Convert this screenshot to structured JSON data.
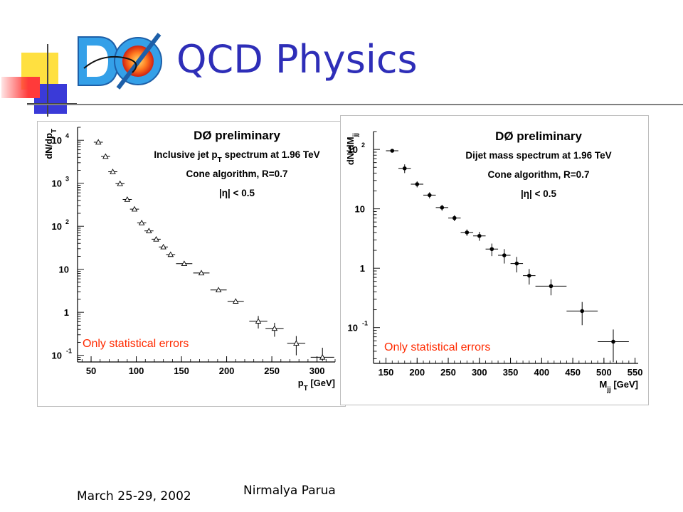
{
  "slide": {
    "title": "QCD Physics",
    "footer_date": "March 25-29, 2002",
    "footer_author": "Nirmalya Parua",
    "logo_label": "DØ"
  },
  "colors": {
    "title": "#2e2eb8",
    "note": "#ff2a00",
    "deco_yellow": "#ffe040",
    "deco_red": "#ff3a3a",
    "deco_blue": "#3a3ad8"
  },
  "chart_data": [
    {
      "type": "scatter",
      "title": "DØ preliminary",
      "subtitle_lines": [
        "Inclusive jet p_T spectrum at 1.96 TeV",
        "Cone algorithm, R=0.7",
        "|η| < 0.5"
      ],
      "xlabel": "p_T [GeV]",
      "ylabel": "dN/dp_T",
      "xlim": [
        35,
        320
      ],
      "ylim": [
        0.07,
        20000
      ],
      "yscale": "log",
      "marker": "open-triangle",
      "x_ticks": [
        50,
        100,
        150,
        200,
        250,
        300
      ],
      "y_ticks": [
        {
          "value": 0.1,
          "base": "10",
          "exp": "-1"
        },
        {
          "value": 1,
          "base": "1",
          "exp": ""
        },
        {
          "value": 10,
          "base": "10",
          "exp": ""
        },
        {
          "value": 100,
          "base": "10",
          "exp": "2"
        },
        {
          "value": 1000,
          "base": "10",
          "exp": "3"
        },
        {
          "value": 10000,
          "base": "10",
          "exp": "4"
        }
      ],
      "note": "Only statistical errors",
      "points": [
        {
          "x": 58,
          "y": 9000,
          "xerr": 5,
          "yerr": 0
        },
        {
          "x": 66,
          "y": 4200,
          "xerr": 5,
          "yerr": 0
        },
        {
          "x": 74,
          "y": 1850,
          "xerr": 5,
          "yerr": 0
        },
        {
          "x": 82,
          "y": 980,
          "xerr": 5,
          "yerr": 0
        },
        {
          "x": 90,
          "y": 420,
          "xerr": 5,
          "yerr": 0
        },
        {
          "x": 98,
          "y": 250,
          "xerr": 5,
          "yerr": 0
        },
        {
          "x": 106,
          "y": 120,
          "xerr": 5,
          "yerr": 0
        },
        {
          "x": 114,
          "y": 78,
          "xerr": 5,
          "yerr": 0
        },
        {
          "x": 122,
          "y": 50,
          "xerr": 5,
          "yerr": 0
        },
        {
          "x": 130,
          "y": 33,
          "xerr": 5,
          "yerr": 0
        },
        {
          "x": 138,
          "y": 22,
          "xerr": 5,
          "yerr": 0
        },
        {
          "x": 153,
          "y": 13.5,
          "xerr": 9,
          "yerr": 0
        },
        {
          "x": 172,
          "y": 8.2,
          "xerr": 9,
          "yerr": 0
        },
        {
          "x": 191,
          "y": 3.3,
          "xerr": 9,
          "yerr": 0
        },
        {
          "x": 210,
          "y": 1.8,
          "xerr": 9,
          "yerr": 0
        },
        {
          "x": 235,
          "y": 0.62,
          "xerr": 10,
          "yerr": 0.2
        },
        {
          "x": 253,
          "y": 0.42,
          "xerr": 10,
          "yerr": 0.15
        },
        {
          "x": 277,
          "y": 0.19,
          "xerr": 10,
          "yerr": 0.09
        },
        {
          "x": 306,
          "y": 0.09,
          "xerr": 13,
          "yerr": 0.06
        }
      ]
    },
    {
      "type": "scatter",
      "title": "DØ preliminary",
      "subtitle_lines": [
        "Dijet mass spectrum at 1.96 TeV",
        "Cone algorithm, R=0.7",
        "|η| < 0.5"
      ],
      "xlabel": "M_jj [GeV]",
      "ylabel": "dN/dM_jj",
      "xlim": [
        130,
        555
      ],
      "ylim": [
        0.025,
        200
      ],
      "yscale": "log",
      "marker": "filled-circle",
      "x_ticks": [
        150,
        200,
        250,
        300,
        350,
        400,
        450,
        500,
        550
      ],
      "y_ticks": [
        {
          "value": 0.1,
          "base": "10",
          "exp": "-1"
        },
        {
          "value": 1,
          "base": "1",
          "exp": ""
        },
        {
          "value": 10,
          "base": "10",
          "exp": ""
        },
        {
          "value": 100,
          "base": "10",
          "exp": "2"
        }
      ],
      "note": "Only statistical errors",
      "points": [
        {
          "x": 160,
          "y": 95,
          "xerr": 10,
          "yerr": 0
        },
        {
          "x": 180,
          "y": 48,
          "xerr": 10,
          "yerr": 8
        },
        {
          "x": 200,
          "y": 26,
          "xerr": 10,
          "yerr": 3
        },
        {
          "x": 220,
          "y": 17,
          "xerr": 10,
          "yerr": 2
        },
        {
          "x": 240,
          "y": 10.5,
          "xerr": 10,
          "yerr": 1.2
        },
        {
          "x": 260,
          "y": 7,
          "xerr": 10,
          "yerr": 0.8
        },
        {
          "x": 280,
          "y": 4,
          "xerr": 10,
          "yerr": 0.5
        },
        {
          "x": 300,
          "y": 3.5,
          "xerr": 10,
          "yerr": 0.6
        },
        {
          "x": 320,
          "y": 2.1,
          "xerr": 10,
          "yerr": 0.5
        },
        {
          "x": 340,
          "y": 1.65,
          "xerr": 10,
          "yerr": 0.45
        },
        {
          "x": 360,
          "y": 1.2,
          "xerr": 10,
          "yerr": 0.35
        },
        {
          "x": 380,
          "y": 0.75,
          "xerr": 10,
          "yerr": 0.22
        },
        {
          "x": 415,
          "y": 0.5,
          "xerr": 25,
          "yerr": 0.15
        },
        {
          "x": 465,
          "y": 0.19,
          "xerr": 25,
          "yerr": 0.08
        },
        {
          "x": 515,
          "y": 0.058,
          "xerr": 25,
          "yerr": 0.035
        }
      ]
    }
  ]
}
